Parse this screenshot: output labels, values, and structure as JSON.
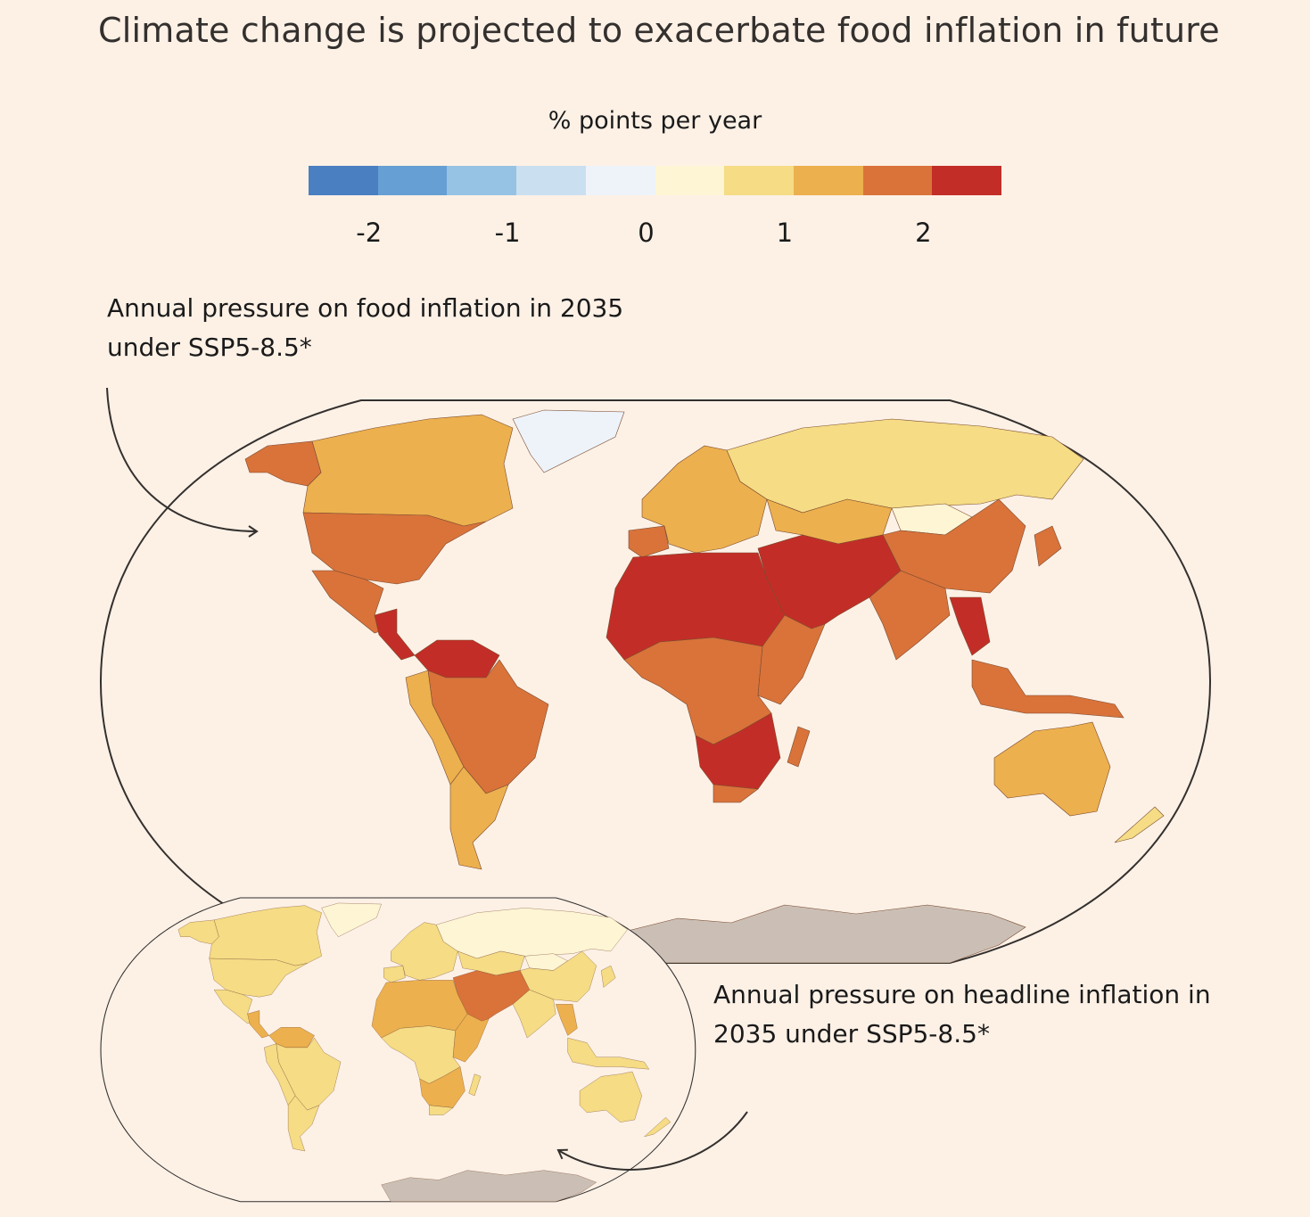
{
  "title": "Climate change is projected to exacerbate food inflation in future",
  "legend": {
    "unit": "% points per year",
    "colors": [
      "#4a7fc1",
      "#659fd3",
      "#96c3e3",
      "#cadff0",
      "#eef3fa",
      "#fdf5d4",
      "#f5dc85",
      "#ecb04e",
      "#d9733a",
      "#c22e27"
    ],
    "ticks": [
      "-2",
      "-1",
      "0",
      "1",
      "2"
    ],
    "tick_values": [
      -2,
      -1,
      0,
      1,
      2
    ],
    "range": [
      -2.5,
      2.5
    ]
  },
  "food_map": {
    "label_line1": "Annual pressure on food inflation in 2035",
    "label_line2": "under SSP5-8.5*"
  },
  "headline_map": {
    "label_line1": "Annual pressure on headline inflation in",
    "label_line2": "2035 under SSP5-8.5*"
  },
  "antarctica_color": "#cbbfb5",
  "regions": [
    {
      "name": "canada",
      "food": 7,
      "headline": 6
    },
    {
      "name": "alaska",
      "food": 8,
      "headline": 6
    },
    {
      "name": "greenland",
      "food": 4,
      "headline": 5
    },
    {
      "name": "usa",
      "food": 8,
      "headline": 6
    },
    {
      "name": "mexico",
      "food": 8,
      "headline": 6
    },
    {
      "name": "central-america",
      "food": 9,
      "headline": 7
    },
    {
      "name": "south-america-north",
      "food": 9,
      "headline": 7
    },
    {
      "name": "brazil",
      "food": 8,
      "headline": 6
    },
    {
      "name": "andes",
      "food": 7,
      "headline": 6
    },
    {
      "name": "southern-cone",
      "food": 7,
      "headline": 6
    },
    {
      "name": "europe",
      "food": 7,
      "headline": 6
    },
    {
      "name": "iberia",
      "food": 8,
      "headline": 6
    },
    {
      "name": "russia",
      "food": 6,
      "headline": 5
    },
    {
      "name": "central-asia",
      "food": 7,
      "headline": 6
    },
    {
      "name": "mongolia",
      "food": 5,
      "headline": 5
    },
    {
      "name": "china",
      "food": 8,
      "headline": 6
    },
    {
      "name": "india",
      "food": 8,
      "headline": 6
    },
    {
      "name": "middle-east",
      "food": 9,
      "headline": 8
    },
    {
      "name": "north-africa",
      "food": 9,
      "headline": 7
    },
    {
      "name": "central-africa",
      "food": 8,
      "headline": 6
    },
    {
      "name": "horn-of-africa",
      "food": 8,
      "headline": 7
    },
    {
      "name": "southern-africa",
      "food": 9,
      "headline": 7
    },
    {
      "name": "south-africa",
      "food": 8,
      "headline": 6
    },
    {
      "name": "madagascar",
      "food": 8,
      "headline": 6
    },
    {
      "name": "southeast-asia",
      "food": 9,
      "headline": 7
    },
    {
      "name": "indonesia",
      "food": 8,
      "headline": 6
    },
    {
      "name": "japan",
      "food": 8,
      "headline": 6
    },
    {
      "name": "australia",
      "food": 7,
      "headline": 6
    },
    {
      "name": "new-zealand",
      "food": 6,
      "headline": 6
    }
  ]
}
